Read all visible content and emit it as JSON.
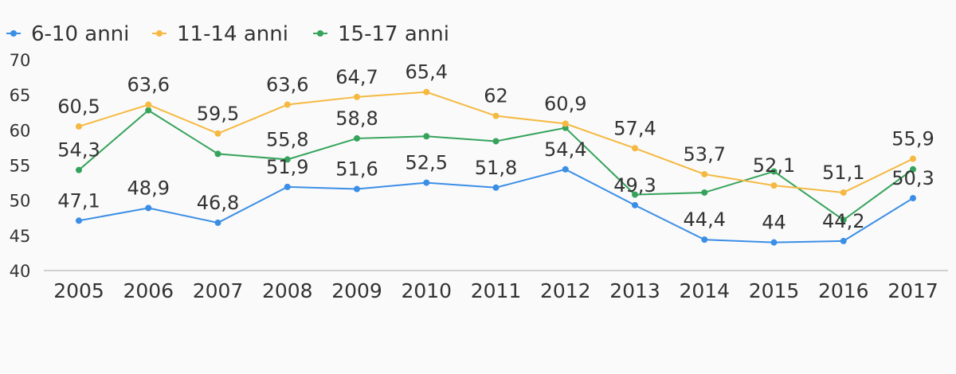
{
  "chart_data": {
    "type": "line",
    "x": [
      "2005",
      "2006",
      "2007",
      "2008",
      "2009",
      "2010",
      "2011",
      "2012",
      "2013",
      "2014",
      "2015",
      "2016",
      "2017"
    ],
    "series": [
      {
        "name": "6-10 anni",
        "color": "#3b8ee6",
        "values": [
          47.1,
          48.9,
          46.8,
          51.9,
          51.6,
          52.5,
          51.8,
          54.4,
          49.3,
          44.4,
          44,
          44.2,
          50.3
        ],
        "labels": [
          "47,1",
          "48,9",
          "46,8",
          "51,9",
          "51,6",
          "52,5",
          "51,8",
          "54,4",
          "49,3",
          "44,4",
          "44",
          "44,2",
          "50,3"
        ]
      },
      {
        "name": "11-14 anni",
        "color": "#f5b942",
        "values": [
          60.5,
          63.6,
          59.5,
          63.6,
          64.7,
          65.4,
          62,
          60.9,
          57.4,
          53.7,
          52.1,
          51.1,
          55.9
        ],
        "labels": [
          "60,5",
          "63,6",
          "59,5",
          "63,6",
          "64,7",
          "65,4",
          "62",
          "60,9",
          "57,4",
          "53,7",
          "52,1",
          "51,1",
          "55,9"
        ]
      },
      {
        "name": "15-17 anni",
        "color": "#35a35b",
        "values": [
          54.3,
          62.8,
          56.6,
          55.8,
          58.8,
          59.1,
          58.4,
          60.3,
          50.8,
          51.1,
          54.1,
          47.2,
          54.4
        ],
        "labels": [
          "54,3",
          "",
          "",
          "55,8",
          "58,8",
          "",
          "",
          "",
          "",
          "",
          "",
          "",
          ""
        ]
      }
    ],
    "yticks": [
      "70",
      "65",
      "60",
      "55",
      "50",
      "45",
      "40"
    ],
    "ylim": [
      40,
      70
    ],
    "grid": false,
    "legend": "top-left"
  }
}
